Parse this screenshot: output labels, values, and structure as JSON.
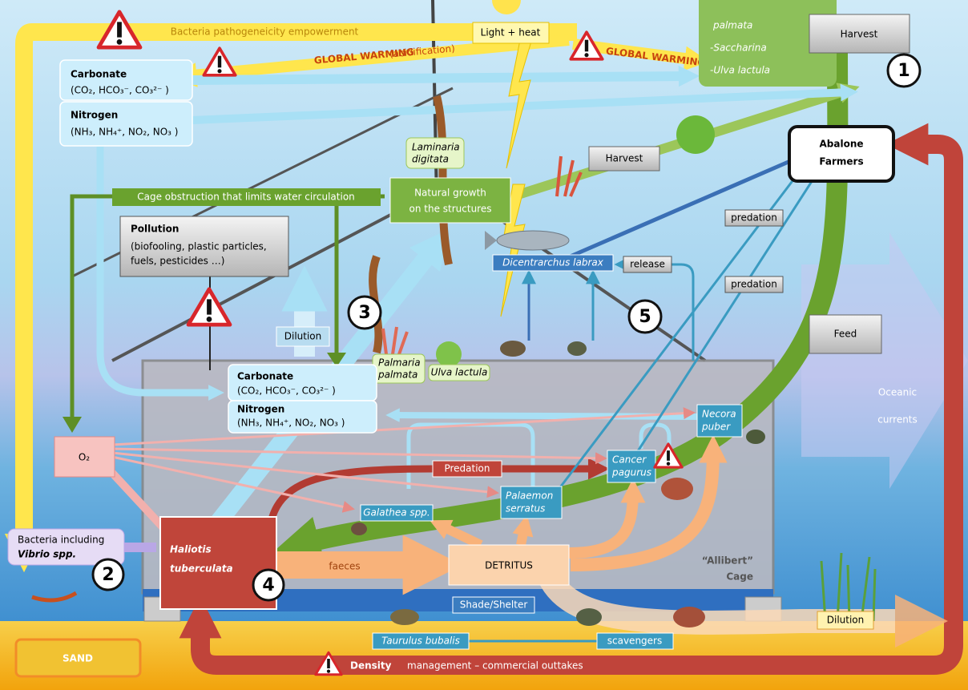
{
  "top": {
    "bacteria_empowerment": "Bacteria pathogeneicity empowerment",
    "light_heat": "Light + heat",
    "global_warming_acid": "GLOBAL WARMING",
    "acidification": "(acidification)",
    "global_warming": "GLOBAL WARMING",
    "algae_lines": [
      "palmata",
      "-Saccharina",
      "-Ulva lactula"
    ],
    "harvest": "Harvest",
    "number": "1"
  },
  "outer_water": {
    "carbonate": "Carbonate",
    "carbonate_formula": "(CO₂, HCO₃⁻, CO₃²⁻ )",
    "nitrogen": "Nitrogen",
    "nitrogen_formula": "(NH₃, NH₄⁺, NO₂, NO₃ )"
  },
  "structure": {
    "laminaria": [
      "Laminaria",
      "digitata"
    ],
    "harvest": "Harvest",
    "abalone_farmers": [
      "Abalone",
      "Farmers"
    ],
    "cage_obstruction": "Cage obstruction that limits water circulation",
    "natural_growth": [
      "Natural growth",
      "on the structures"
    ],
    "pollution_title": "Pollution",
    "pollution_detail": [
      "(biofooling, plastic particles,",
      "fuels, pesticides …)"
    ],
    "predation_1": "predation",
    "predation_2": "predation",
    "release": "release",
    "dicentrarchus": "Dicentrarchus labrax",
    "number_3": "3",
    "number_5": "5",
    "dilution": "Dilution",
    "feed": "Feed",
    "palmaria": [
      "Palmaria",
      "palmata"
    ],
    "ulva": "Ulva lactula",
    "oceanic_currents": [
      "Oceanic",
      "currents"
    ]
  },
  "cage": {
    "carbonate": "Carbonate",
    "carbonate_formula": "(CO₂, HCO₃⁻, CO₃²⁻ )",
    "nitrogen": "Nitrogen",
    "nitrogen_formula": "(NH₃, NH₄⁺, NO₂, NO₃ )",
    "necora": [
      "Necora",
      "puber"
    ],
    "o2": "O₂",
    "predation": "Predation",
    "cancer": [
      "Cancer",
      "pagurus"
    ],
    "palaemon": [
      "Palaemon",
      "serratus"
    ],
    "galathea": "Galathea spp.",
    "bacteria": "Bacteria including",
    "vibrio": "Vibrio spp.",
    "number_2": "2",
    "haliotis": [
      "Haliotis",
      "tuberculata"
    ],
    "number_4": "4",
    "faeces": "faeces",
    "detritus": "DETRITUS",
    "allibert": [
      "“Allibert”",
      "Cage"
    ]
  },
  "bottom": {
    "shade": "Shade/Shelter",
    "taurulus": "Taurulus bubalis",
    "scavengers": "scavengers",
    "dilution": "Dilution",
    "sand": "SAND",
    "density_bold": "Density",
    "density_rest": "management – commercial outtakes"
  }
}
